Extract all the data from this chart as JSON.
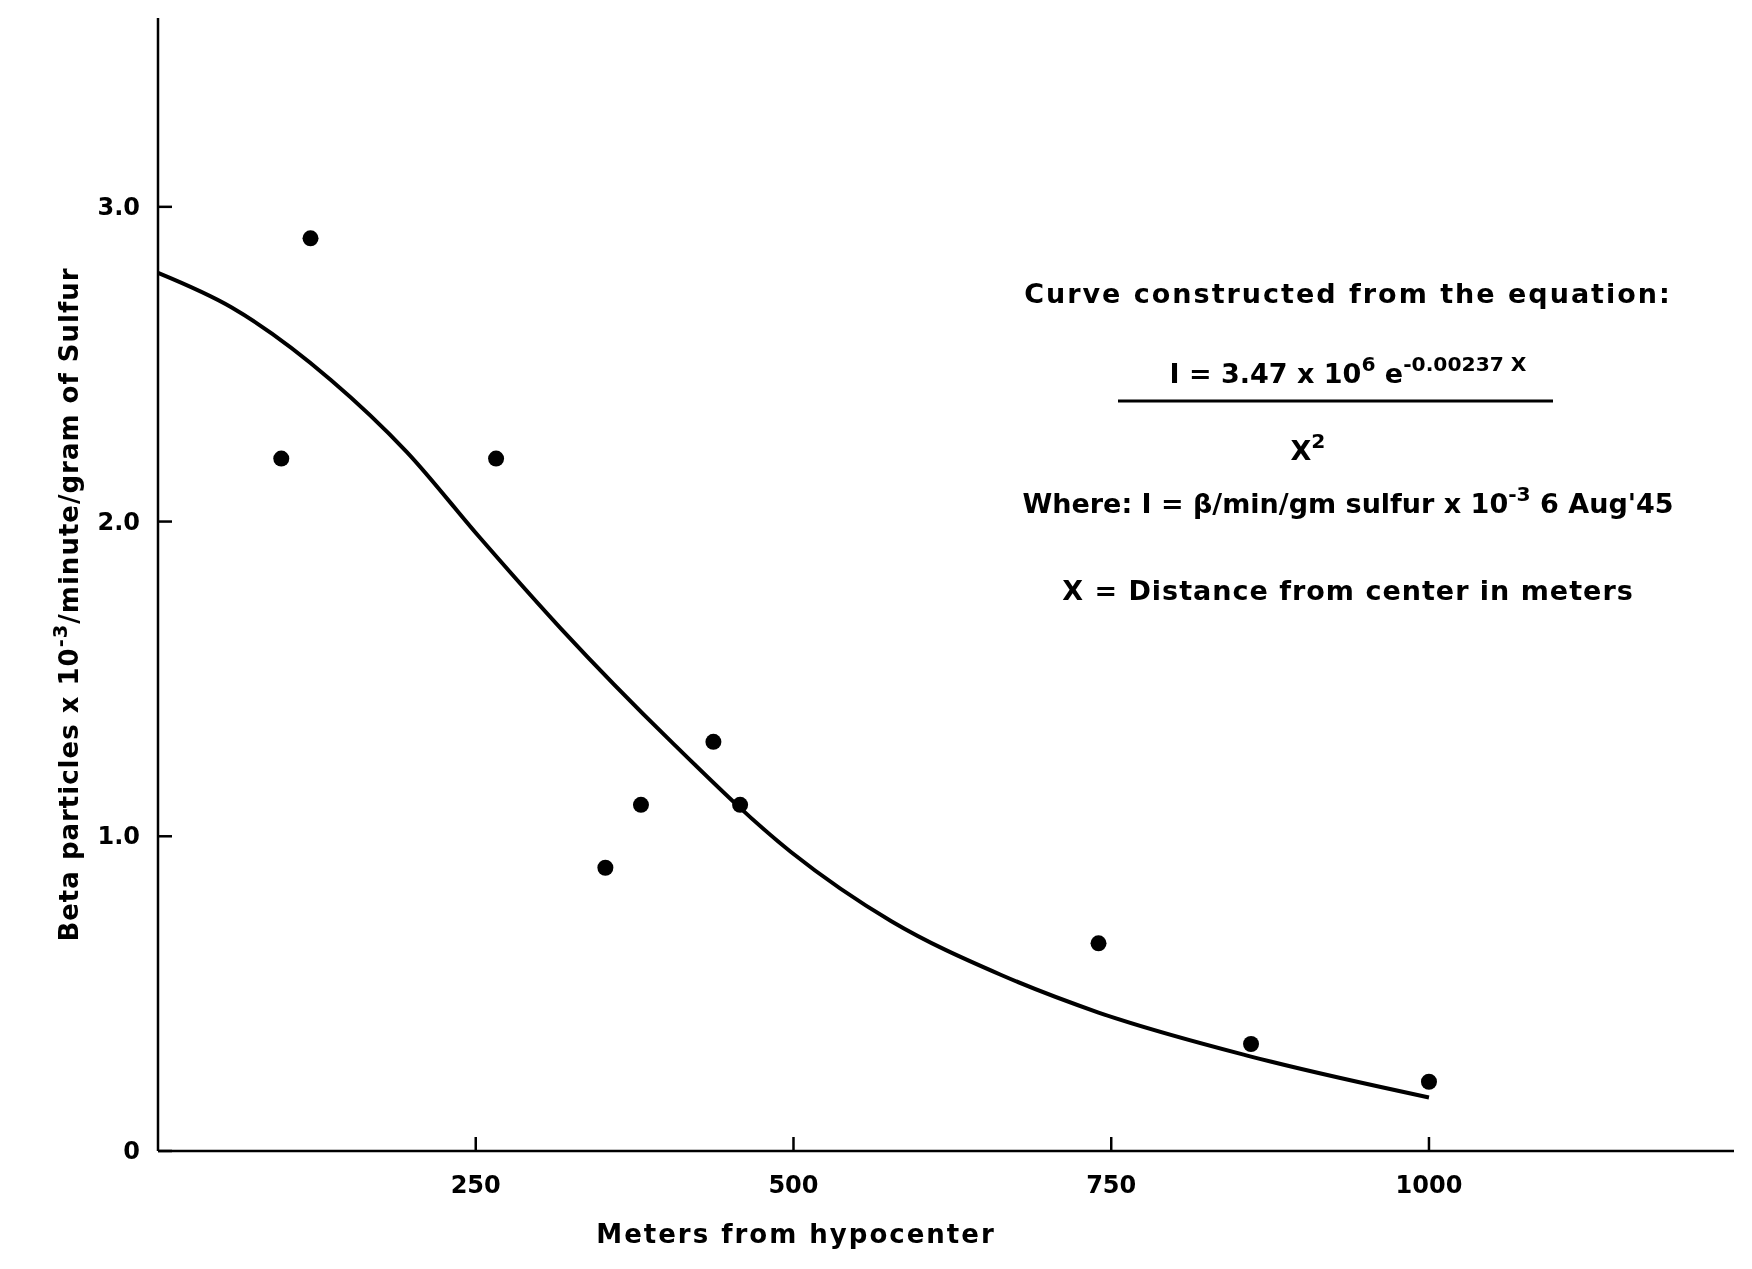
{
  "chart_data": {
    "type": "scatter",
    "xlabel": "Meters from hypocenter",
    "ylabel": "Beta particles x 10$^{-3}$/minute/gram of Sulfur",
    "xlim": [
      0,
      1240
    ],
    "xticks": [
      250,
      500,
      750,
      1000
    ],
    "ylim": [
      0,
      3.6
    ],
    "yticks": [
      0,
      {
        "value": 1,
        "label": "1.0"
      },
      {
        "value": 2,
        "label": "2.0"
      },
      {
        "value": 3,
        "label": "3.0"
      }
    ],
    "grid": false,
    "series": [
      {
        "type": "scatter",
        "marker": "circle",
        "color": "#000000",
        "x": [
          97,
          120,
          266,
          352,
          380,
          437,
          458,
          740,
          860,
          1000
        ],
        "values": [
          2.2,
          2.9,
          2.2,
          0.9,
          1.1,
          1.3,
          1.1,
          0.66,
          0.34,
          0.22
        ]
      },
      {
        "type": "line",
        "color": "#000000",
        "line_style": "solid",
        "x": [
          0,
          58,
          136,
          196,
          253,
          317,
          404,
          498,
          577,
          663,
          740,
          860,
          1000
        ],
        "values": [
          2.79,
          2.68,
          2.45,
          2.22,
          1.95,
          1.66,
          1.3,
          0.95,
          0.73,
          0.56,
          0.44,
          0.3,
          0.17
        ]
      }
    ],
    "annotations": [
      "Curve constructed from the equation:",
      "I = 3.47 x 10$^{6}$ e$^{-0.00237 X}$",
      "X$^{2}$",
      "Where: I = β/min/gm  sulfur  x 10$^{-3}$ 6 Aug'45",
      "X = Distance from center in meters"
    ]
  }
}
